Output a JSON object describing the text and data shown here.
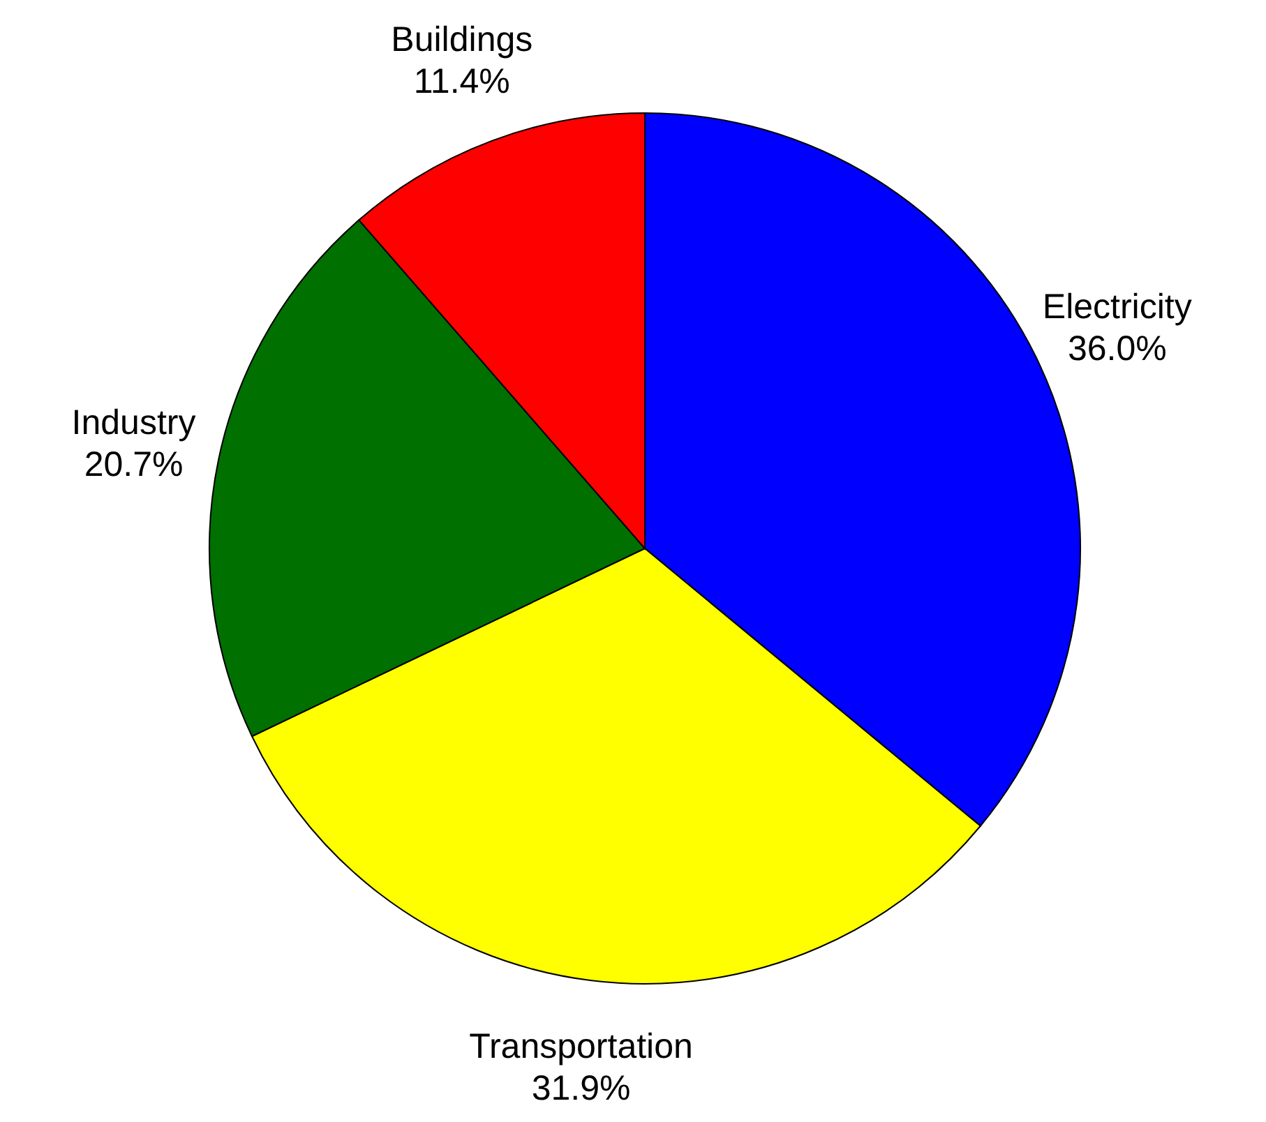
{
  "chart_data": {
    "type": "pie",
    "categories": [
      "Electricity",
      "Transportation",
      "Industry",
      "Buildings"
    ],
    "values": [
      36.0,
      31.9,
      20.7,
      11.4
    ],
    "colors": [
      "#0000ff",
      "#ffff00",
      "#007000",
      "#ff0000"
    ],
    "value_labels": [
      "36.0%",
      "31.9%",
      "20.7%",
      "11.4%"
    ],
    "legend": false
  }
}
